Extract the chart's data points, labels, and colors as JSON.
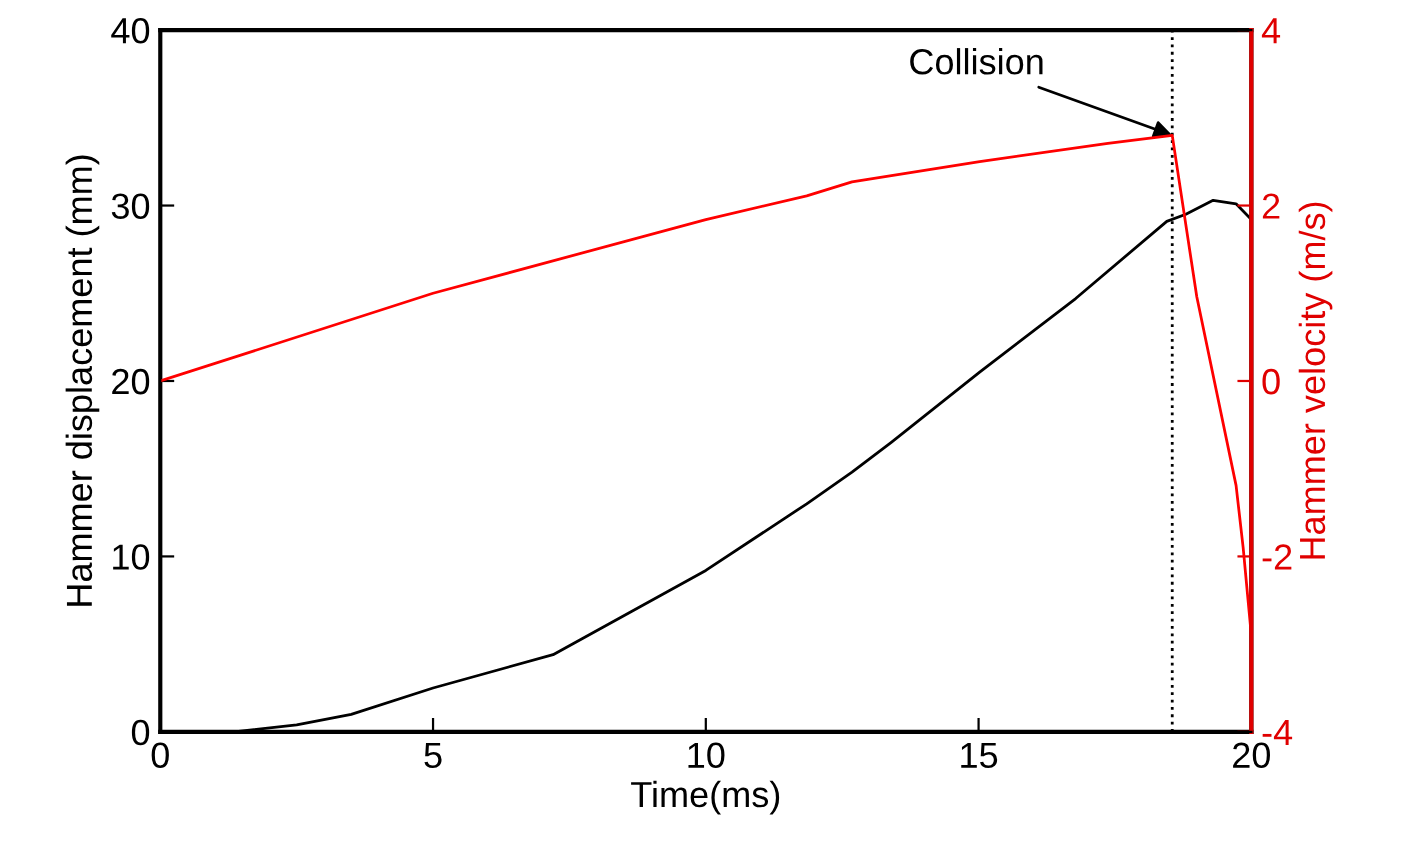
{
  "chart_data": {
    "type": "line",
    "xlabel": "Time(ms)",
    "ylabel": "Hammer displacement (mm)",
    "y2label": "Hammer velocity (m/s)",
    "xlim": [
      0,
      20
    ],
    "xticks": [
      0,
      5,
      10,
      15,
      20
    ],
    "ylim": [
      0,
      40
    ],
    "yticks": [
      0,
      10,
      20,
      30,
      40
    ],
    "y2lim": [
      -4,
      4
    ],
    "y2ticks": [
      -4,
      -2,
      0,
      2,
      4
    ],
    "grid": false,
    "legend": false,
    "line_style": "solid",
    "marker": "none",
    "series": [
      {
        "color": "#000000",
        "x": [
          0,
          1.35,
          2.5,
          3.5,
          5,
          7.2,
          10,
          11.85,
          12.68,
          13.4,
          15.02,
          16.78,
          18.45,
          18.8,
          19.3,
          19.72,
          20
        ],
        "values": [
          0,
          0,
          0.4,
          1.0,
          2.5,
          4.4,
          9.2,
          13.0,
          14.8,
          16.5,
          20.5,
          24.7,
          29.1,
          29.5,
          30.3,
          30.1,
          29.2
        ]
      },
      {
        "color": "#ff0000",
        "axis": "y2",
        "x": [
          0,
          5,
          10,
          11.85,
          12.68,
          15.02,
          17.37,
          18.55,
          19.0,
          19.72,
          19.85,
          20
        ],
        "values": [
          0,
          1.0,
          1.84,
          2.11,
          2.27,
          2.5,
          2.71,
          2.8,
          0.96,
          -1.19,
          -1.9,
          -2.9
        ]
      }
    ],
    "ref_lines": [
      {
        "axis": "x",
        "value": 18.55,
        "color": "#000000",
        "line_style": "dotted"
      }
    ],
    "annotations": [
      {
        "text": "Collision",
        "x": 18.55,
        "y": 34
      }
    ]
  }
}
